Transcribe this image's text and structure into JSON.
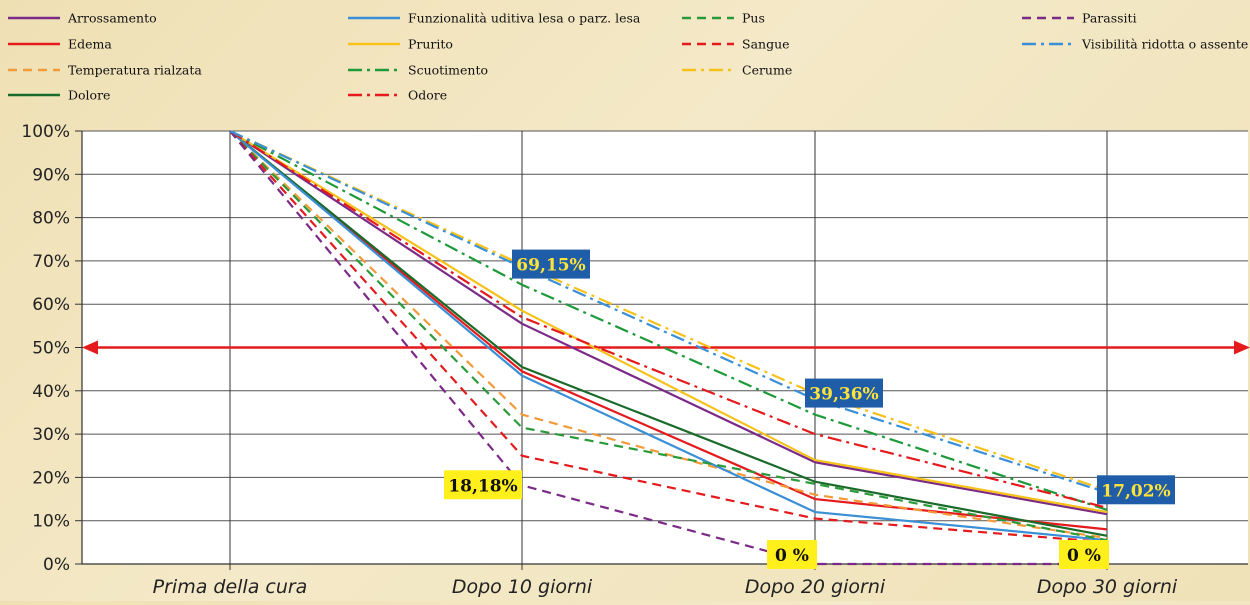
{
  "chart_data": {
    "type": "line",
    "categories": [
      "Prima della cura",
      "Dopo 10 giorni",
      "Dopo 20 giorni",
      "Dopo 30 giorni"
    ],
    "ylim": [
      0,
      100
    ],
    "yticks": [
      "0%",
      "10%",
      "20%",
      "30%",
      "40%",
      "50%",
      "60%",
      "70%",
      "80%",
      "90%",
      "100%"
    ],
    "grid": true,
    "legend_position": "top",
    "reference_line": {
      "value": 50,
      "color": "#e41a1c",
      "arrows": "both"
    },
    "series": [
      {
        "name": "Arrossamento",
        "values": [
          100,
          55.5,
          23.5,
          11.5
        ],
        "color": "#7b2a87",
        "dash": "solid"
      },
      {
        "name": "Edema",
        "values": [
          100,
          44.5,
          15,
          8
        ],
        "color": "#e41a1c",
        "dash": "solid"
      },
      {
        "name": "Temperatura rialzata",
        "values": [
          100,
          34.5,
          16,
          6
        ],
        "color": "#f39a3a",
        "dash": "dash"
      },
      {
        "name": "Dolore",
        "values": [
          100,
          45.5,
          19,
          6.5
        ],
        "color": "#1a6b2a",
        "dash": "solid"
      },
      {
        "name": "Funzionalità uditiva lesa o parz. lesa",
        "values": [
          100,
          43.5,
          12,
          5.5
        ],
        "color": "#3a8fd6",
        "dash": "solid"
      },
      {
        "name": "Prurito",
        "values": [
          100,
          58.5,
          24,
          12
        ],
        "color": "#f6c21a",
        "dash": "solid"
      },
      {
        "name": "Scuotimento",
        "values": [
          100,
          64.5,
          34.5,
          12.5
        ],
        "color": "#1e9a3a",
        "dash": "dashdot"
      },
      {
        "name": "Odore",
        "values": [
          100,
          57,
          30,
          13
        ],
        "color": "#e41a1c",
        "dash": "dashdot"
      },
      {
        "name": "Pus",
        "values": [
          100,
          31.5,
          18.5,
          5.5
        ],
        "color": "#2a9a3a",
        "dash": "dash"
      },
      {
        "name": "Sangue",
        "values": [
          100,
          25,
          10.5,
          5
        ],
        "color": "#e41a1c",
        "dash": "dash"
      },
      {
        "name": "Cerume",
        "values": [
          100,
          69.15,
          39.36,
          17.02
        ],
        "color": "#f6c21a",
        "dash": "dashdot"
      },
      {
        "name": "Parassiti",
        "values": [
          100,
          18.18,
          0,
          0
        ],
        "color": "#7b2a87",
        "dash": "dash"
      },
      {
        "name": "Visibilità ridotta o assente",
        "values": [
          100,
          68.5,
          38,
          16.5
        ],
        "color": "#3a8fd6",
        "dash": "dashdot"
      }
    ],
    "legend_layout": [
      [
        "Arrossamento",
        "Edema",
        "Temperatura rialzata",
        "Dolore"
      ],
      [
        "Funzionalità uditiva lesa o parz. lesa",
        "Prurito",
        "Scuotimento",
        "Odore"
      ],
      [
        "Pus",
        "Sangue",
        "Cerume"
      ],
      [
        "Parassiti",
        "Visibilità ridotta o assente"
      ]
    ],
    "annotations": [
      {
        "text": "69,15%",
        "x": "Dopo 10 giorni",
        "y": 69.15,
        "style": "blue"
      },
      {
        "text": "39,36%",
        "x": "Dopo 20 giorni",
        "y": 39.36,
        "style": "blue"
      },
      {
        "text": "17,02%",
        "x": "Dopo 30 giorni",
        "y": 17.02,
        "style": "blue"
      },
      {
        "text": "18,18%",
        "x": "Dopo 10 giorni",
        "y": 18.18,
        "style": "yellow"
      },
      {
        "text": "0 %",
        "x": "Dopo 20 giorni",
        "y": 0,
        "style": "yellow"
      },
      {
        "text": "0 %",
        "x": "Dopo 30 giorni",
        "y": 0,
        "style": "yellow"
      }
    ],
    "annotation_styles": {
      "blue": {
        "bg": "#1f5da8",
        "fg": "#ffe23a"
      },
      "yellow": {
        "bg": "#ffef1a",
        "fg": "#111111"
      }
    }
  }
}
